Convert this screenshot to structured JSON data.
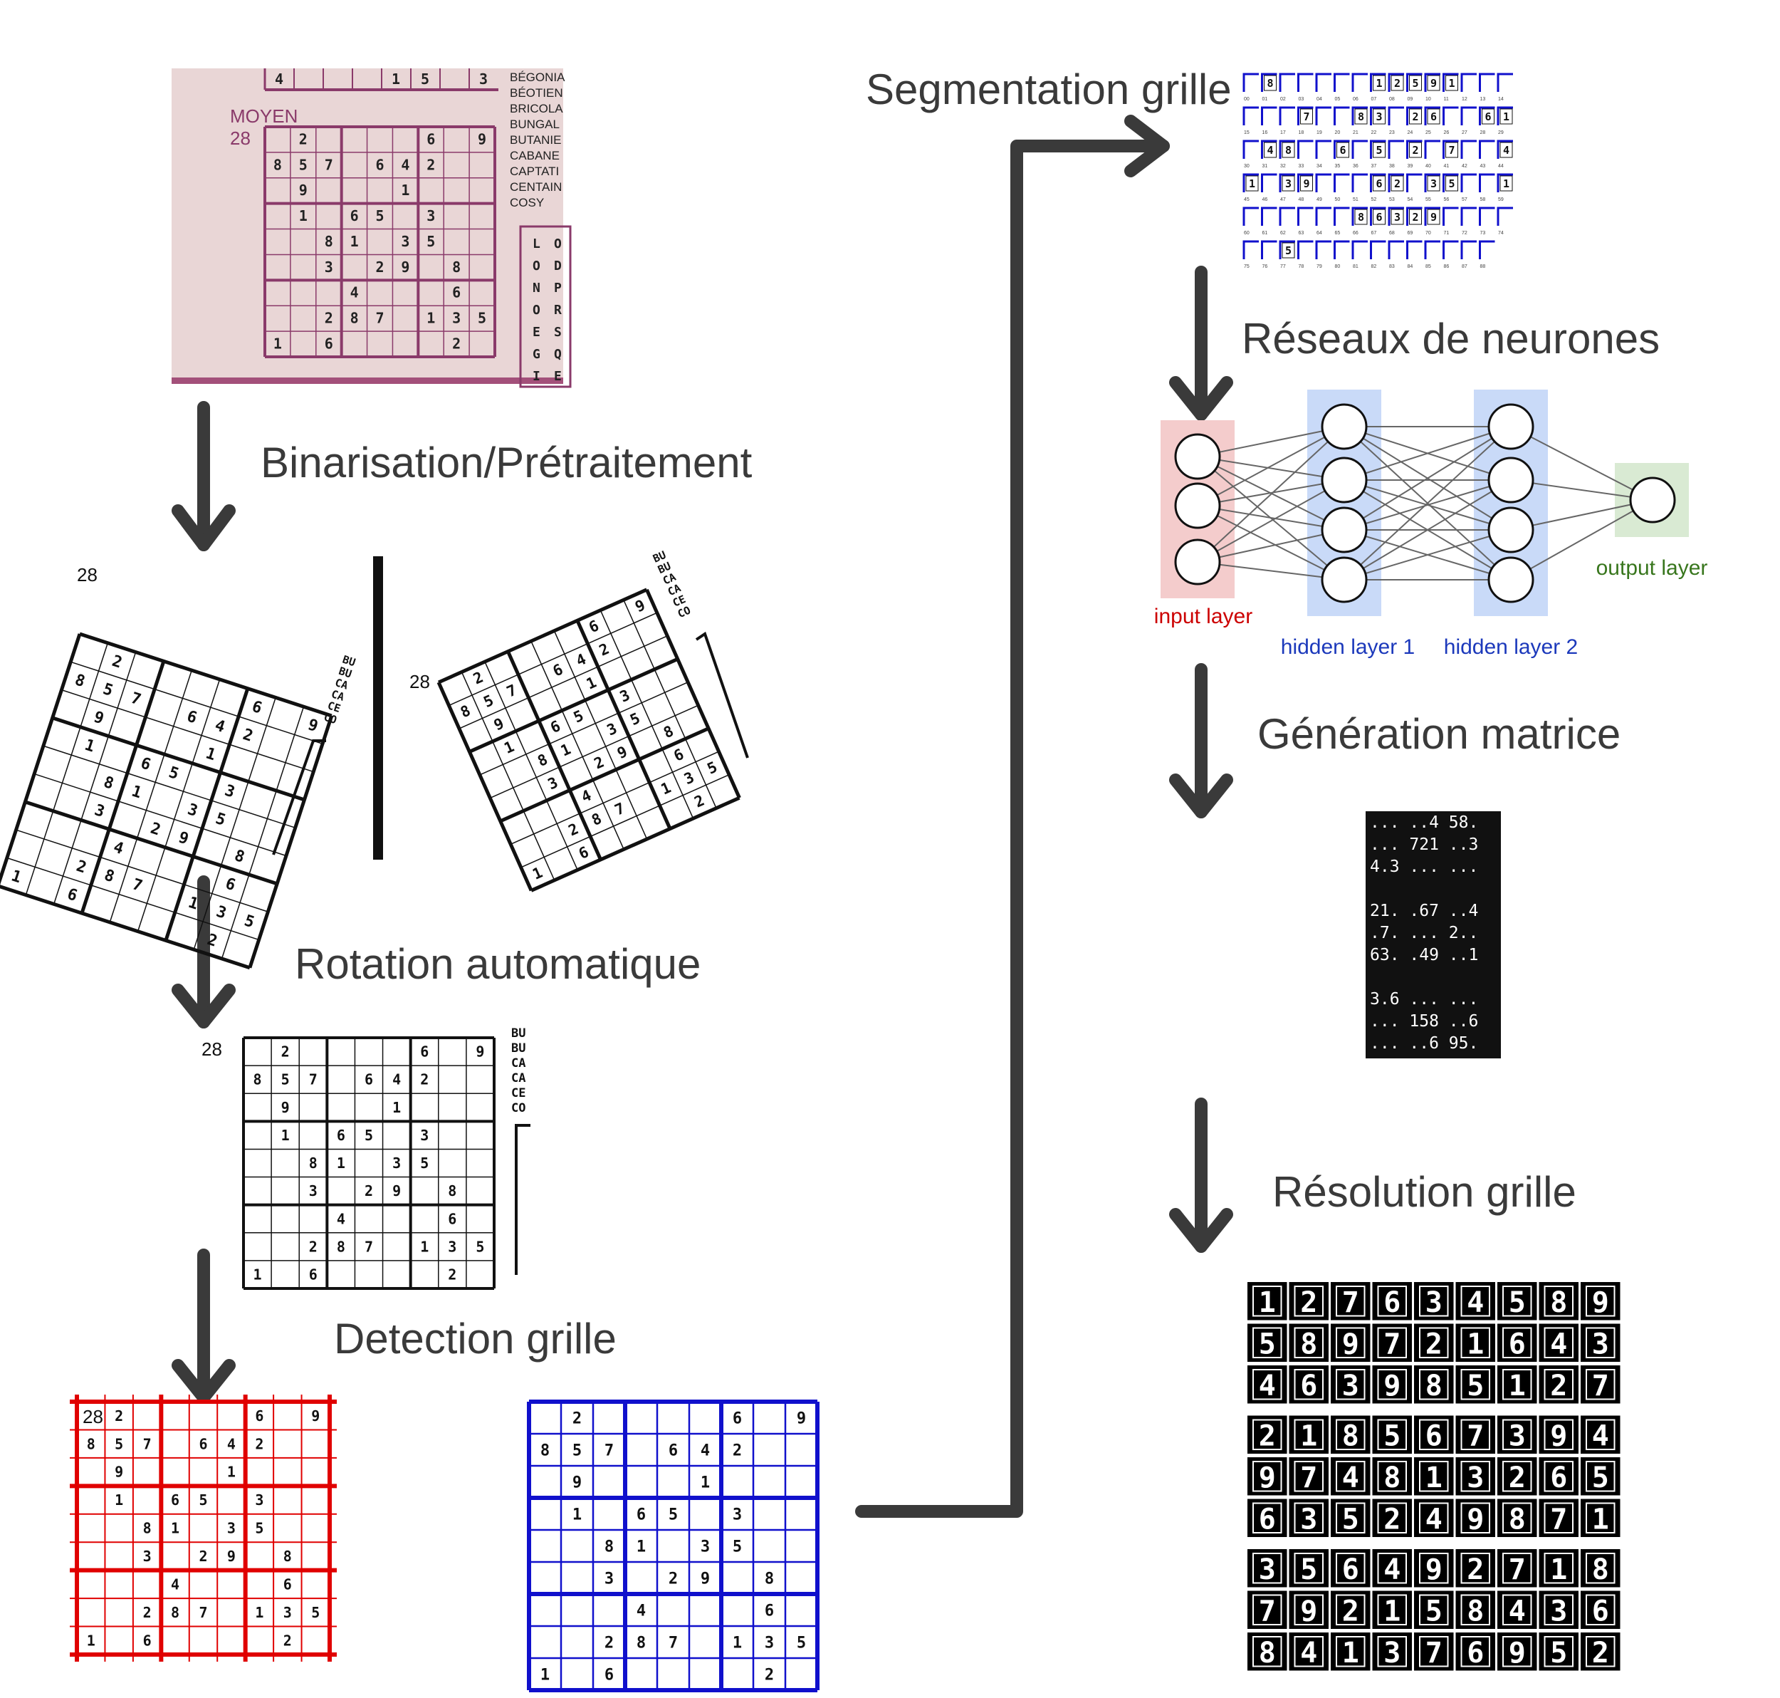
{
  "steps": {
    "binarisation": "Binarisation/Prétraitement",
    "rotation": "Rotation automatique",
    "detection": "Detection grille",
    "segmentation": "Segmentation grille",
    "reseaux": "Réseaux de neurones",
    "generation": "Génération matrice",
    "resolution": "Résolution grille"
  },
  "photo": {
    "difficulty": "MOYEN",
    "number": "28",
    "top_row": [
      "4",
      "",
      "",
      "",
      "1",
      "5",
      "",
      "3"
    ],
    "words": [
      "BÉGONIA",
      "BÉOTIEN",
      "BRICOLA",
      "BUNGAL",
      "BUTANIE",
      "CABANE",
      "CAPTATI",
      "CENTAIN",
      "COSY"
    ],
    "letters": [
      [
        "L",
        "O"
      ],
      [
        "O",
        "D"
      ],
      [
        "N",
        "P"
      ],
      [
        "O",
        "R"
      ],
      [
        "E",
        "S"
      ],
      [
        "G",
        "Q"
      ],
      [
        "I",
        "E"
      ]
    ]
  },
  "side_words": [
    "BU",
    "BU",
    "CA",
    "CA",
    "CE",
    "CO"
  ],
  "grid_given": [
    [
      "",
      "2",
      "",
      "",
      "",
      "",
      "6",
      "",
      "9"
    ],
    [
      "8",
      "5",
      "7",
      "",
      "6",
      "4",
      "2",
      "",
      ""
    ],
    [
      "",
      "9",
      "",
      "",
      "",
      "1",
      "",
      "",
      ""
    ],
    [
      "",
      "1",
      "",
      "6",
      "5",
      "",
      "3",
      "",
      ""
    ],
    [
      "",
      "",
      "8",
      "1",
      "",
      "3",
      "5",
      "",
      ""
    ],
    [
      "",
      "",
      "3",
      "",
      "2",
      "9",
      "",
      "8",
      ""
    ],
    [
      "",
      "",
      "",
      "4",
      "",
      "",
      "",
      "6",
      ""
    ],
    [
      "",
      "",
      "2",
      "8",
      "7",
      "",
      "1",
      "3",
      "5"
    ],
    [
      "1",
      "",
      "6",
      "",
      "",
      "",
      "",
      "2",
      ""
    ]
  ],
  "segmentation": {
    "cell_indices": [
      "00",
      "01",
      "02",
      "03",
      "04",
      "05",
      "06",
      "07",
      "08",
      "09",
      "10",
      "11",
      "12",
      "13",
      "14",
      "15",
      "16",
      "17",
      "18",
      "19",
      "20",
      "21",
      "22",
      "23",
      "24",
      "25",
      "26",
      "27",
      "28",
      "29",
      "30",
      "31",
      "32",
      "33",
      "34",
      "35",
      "36",
      "37",
      "38",
      "39",
      "40",
      "41",
      "42",
      "43",
      "44",
      "45",
      "46",
      "47",
      "48",
      "49",
      "50",
      "51",
      "52",
      "53",
      "54",
      "55",
      "56",
      "57",
      "58",
      "59",
      "60",
      "61",
      "62",
      "63",
      "64",
      "65",
      "66",
      "67",
      "68",
      "69",
      "70",
      "71",
      "72",
      "73",
      "74",
      "75",
      "76",
      "77",
      "78",
      "79",
      "80",
      "81",
      "82",
      "83",
      "84",
      "85",
      "86",
      "87",
      "88"
    ],
    "cell_digits": [
      "",
      "8",
      "",
      "",
      "",
      "",
      "",
      "1",
      "2",
      "5",
      "9",
      "1",
      "",
      "",
      "",
      "",
      "",
      "",
      "7",
      "",
      "",
      "8",
      "3",
      "",
      "2",
      "6",
      "",
      "",
      "6",
      "1",
      "",
      "4",
      "8",
      "",
      "",
      "6",
      "",
      "5",
      "",
      "2",
      "",
      "7",
      "",
      "",
      "4",
      "1",
      "",
      "3",
      "9",
      "",
      "",
      "",
      "6",
      "2",
      "",
      "3",
      "5",
      "",
      "",
      "1",
      "",
      "",
      "",
      "",
      "",
      "",
      "8",
      "6",
      "3",
      "2",
      "9",
      "",
      "",
      "",
      "",
      "",
      "",
      "5",
      "",
      ""
    ]
  },
  "neural_network": {
    "input_label": "input layer",
    "hidden1_label": "hidden layer 1",
    "hidden2_label": "hidden layer 2",
    "output_label": "output layer",
    "input_color": "#f4cccc",
    "hidden_color": "#c9daf8",
    "output_color": "#d9ead3",
    "input_text_color": "#cc0000",
    "hidden_text_color": "#1c39bb",
    "output_text_color": "#38761d"
  },
  "matrix_lines": [
    "... ..4 58.",
    "... 721 ..3",
    "4.3 ... ...",
    "",
    "21. .67 ..4",
    ".7. ... 2..",
    "63. .49 ..1",
    "",
    "3.6 ... ...",
    "... 158 ..6",
    "... ..6 95."
  ],
  "solution": [
    [
      "1",
      "2",
      "7",
      "6",
      "3",
      "4",
      "5",
      "8",
      "9"
    ],
    [
      "5",
      "8",
      "9",
      "7",
      "2",
      "1",
      "6",
      "4",
      "3"
    ],
    [
      "4",
      "6",
      "3",
      "9",
      "8",
      "5",
      "1",
      "2",
      "7"
    ],
    [
      "2",
      "1",
      "8",
      "5",
      "6",
      "7",
      "3",
      "9",
      "4"
    ],
    [
      "9",
      "7",
      "4",
      "8",
      "1",
      "3",
      "2",
      "6",
      "5"
    ],
    [
      "6",
      "3",
      "5",
      "2",
      "4",
      "9",
      "8",
      "7",
      "1"
    ],
    [
      "3",
      "5",
      "6",
      "4",
      "9",
      "2",
      "7",
      "1",
      "8"
    ],
    [
      "7",
      "9",
      "2",
      "1",
      "5",
      "8",
      "4",
      "3",
      "6"
    ],
    [
      "8",
      "4",
      "1",
      "3",
      "7",
      "6",
      "9",
      "5",
      "2"
    ]
  ],
  "colors": {
    "arrow": "#3a3a3a",
    "red_grid": "#e00000",
    "blue_grid": "#1010cc",
    "photo_bg": "#e9d6d6",
    "photo_grid": "#8a3a6a"
  }
}
